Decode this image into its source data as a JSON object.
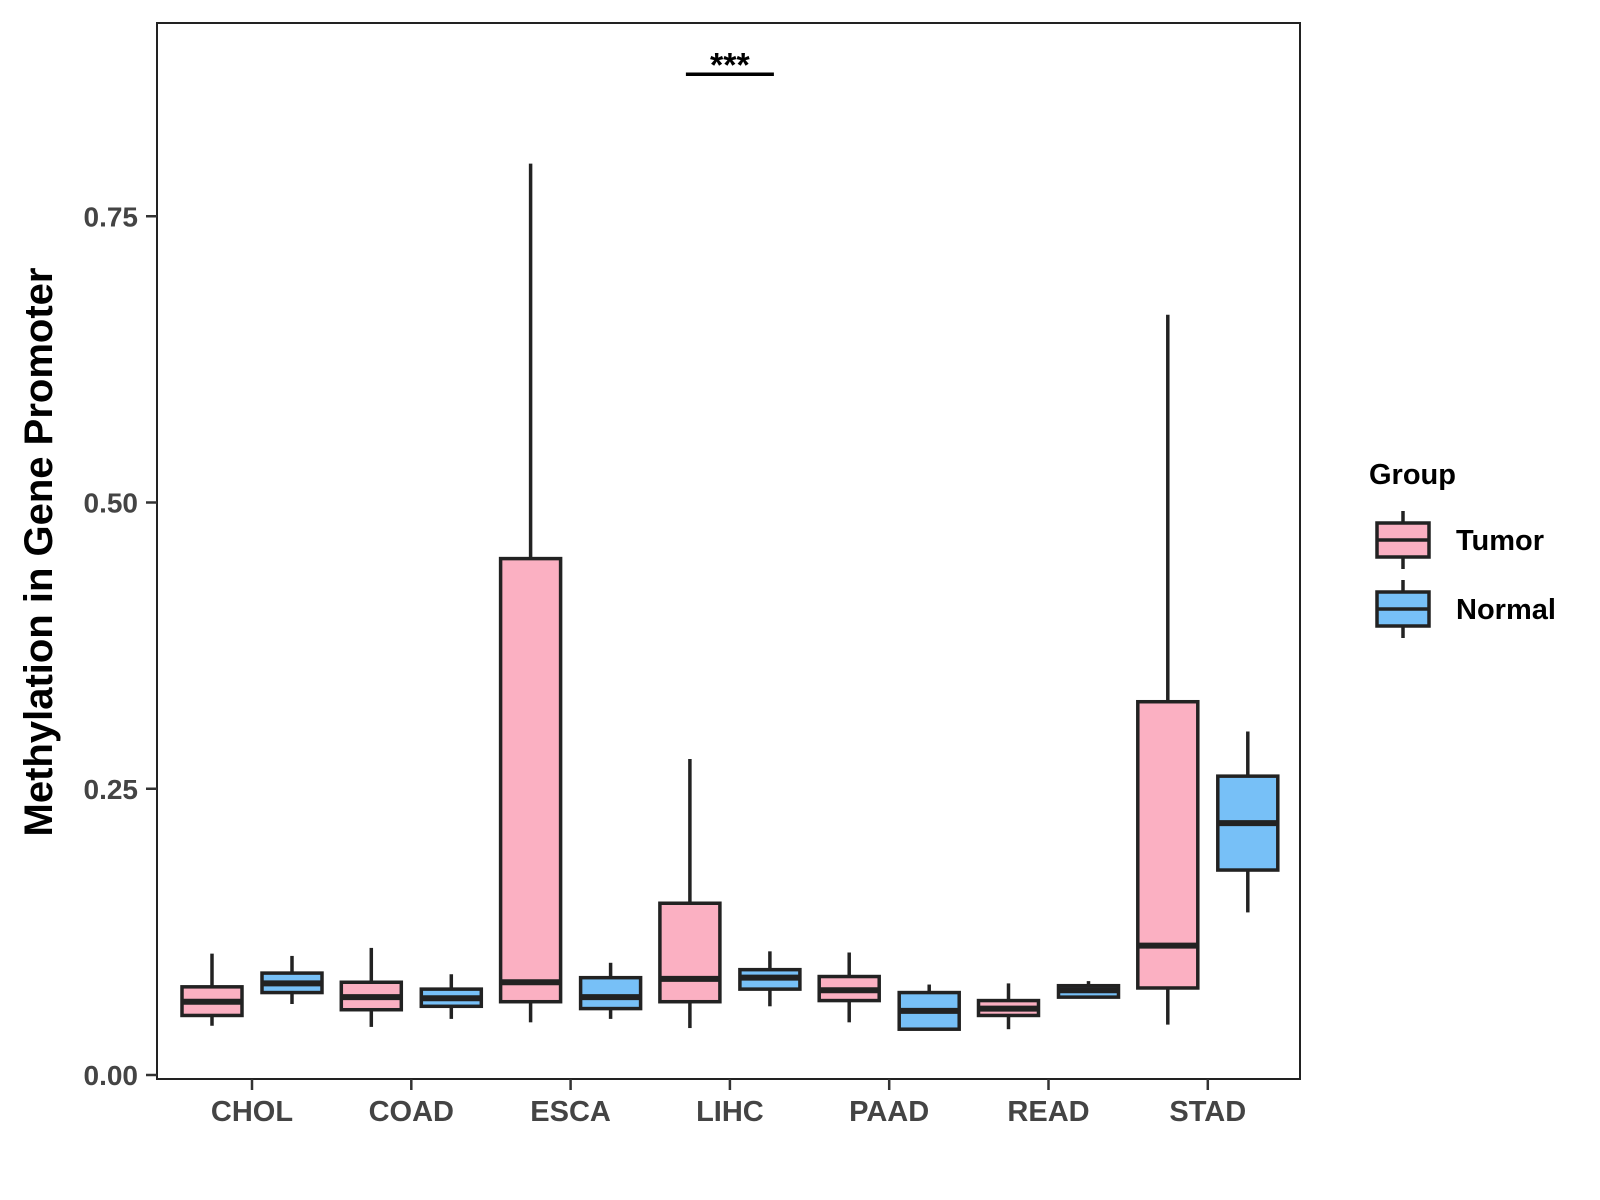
{
  "chart_data": {
    "type": "boxplot",
    "title": "",
    "xlabel": "",
    "ylabel": "Methylation in Gene Promoter",
    "ylim": [
      0,
      0.92
    ],
    "yticks": [
      0.0,
      0.25,
      0.5,
      0.75
    ],
    "ytick_labels": [
      "0.00",
      "0.25",
      "0.50",
      "0.75"
    ],
    "categories": [
      "CHOL",
      "COAD",
      "ESCA",
      "LIHC",
      "PAAD",
      "READ",
      "STAD"
    ],
    "legend": {
      "title": "Group",
      "position": "right",
      "entries": [
        "Tumor",
        "Normal"
      ]
    },
    "colors": {
      "Tumor": "#fbb0c2",
      "Normal": "#77c0f7",
      "line": "#222222"
    },
    "series": [
      {
        "name": "Tumor",
        "boxes": [
          {
            "category": "CHOL",
            "min": 0.043,
            "q1": 0.052,
            "median": 0.064,
            "q3": 0.077,
            "max": 0.106
          },
          {
            "category": "COAD",
            "min": 0.042,
            "q1": 0.057,
            "median": 0.068,
            "q3": 0.081,
            "max": 0.111
          },
          {
            "category": "ESCA",
            "min": 0.046,
            "q1": 0.064,
            "median": 0.081,
            "q3": 0.451,
            "max": 0.796
          },
          {
            "category": "LIHC",
            "min": 0.041,
            "q1": 0.064,
            "median": 0.084,
            "q3": 0.15,
            "max": 0.276
          },
          {
            "category": "PAAD",
            "min": 0.046,
            "q1": 0.065,
            "median": 0.074,
            "q3": 0.086,
            "max": 0.107
          },
          {
            "category": "READ",
            "min": 0.04,
            "q1": 0.052,
            "median": 0.058,
            "q3": 0.065,
            "max": 0.08
          },
          {
            "category": "STAD",
            "min": 0.044,
            "q1": 0.076,
            "median": 0.113,
            "q3": 0.326,
            "max": 0.664
          }
        ]
      },
      {
        "name": "Normal",
        "boxes": [
          {
            "category": "CHOL",
            "min": 0.062,
            "q1": 0.072,
            "median": 0.08,
            "q3": 0.089,
            "max": 0.104
          },
          {
            "category": "COAD",
            "min": 0.049,
            "q1": 0.06,
            "median": 0.067,
            "q3": 0.075,
            "max": 0.088
          },
          {
            "category": "ESCA",
            "min": 0.049,
            "q1": 0.058,
            "median": 0.068,
            "q3": 0.085,
            "max": 0.098
          },
          {
            "category": "LIHC",
            "min": 0.06,
            "q1": 0.075,
            "median": 0.085,
            "q3": 0.092,
            "max": 0.108
          },
          {
            "category": "PAAD",
            "min": 0.04,
            "q1": 0.04,
            "median": 0.056,
            "q3": 0.072,
            "max": 0.079
          },
          {
            "category": "READ",
            "min": 0.067,
            "q1": 0.068,
            "median": 0.074,
            "q3": 0.078,
            "max": 0.082
          },
          {
            "category": "STAD",
            "min": 0.142,
            "q1": 0.179,
            "median": 0.22,
            "q3": 0.261,
            "max": 0.3
          }
        ]
      }
    ],
    "annotations": [
      {
        "text": "***",
        "category": "LIHC",
        "y": 0.874
      }
    ]
  }
}
